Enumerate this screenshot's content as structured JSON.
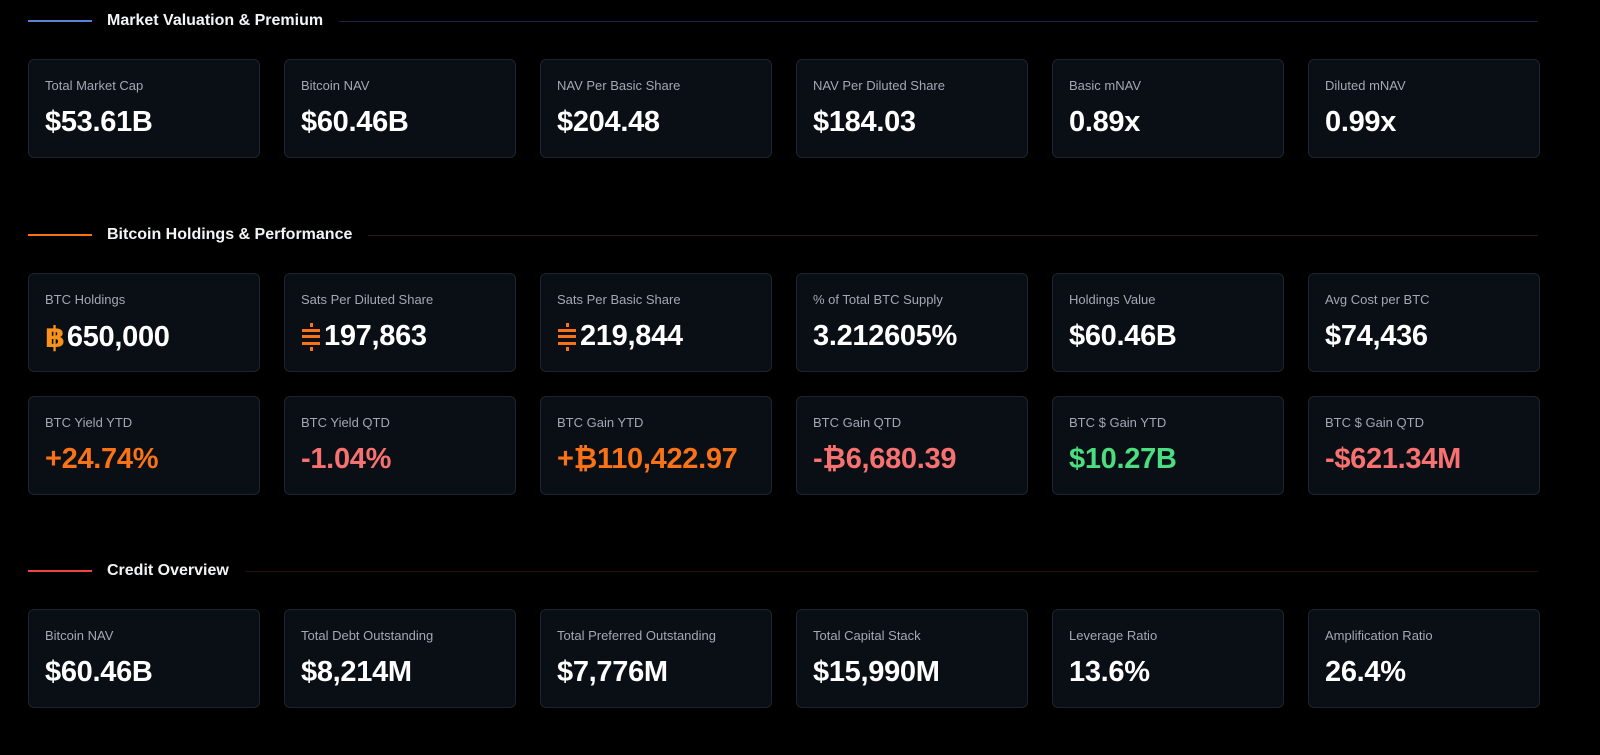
{
  "colors": {
    "accent_blue": "#5b82d9",
    "accent_orange": "#f97316",
    "accent_red": "#ef4444",
    "positive_green": "#4ade80",
    "negative_red": "#f87171",
    "bitcoin_orange": "#f7931a"
  },
  "sections": [
    {
      "title": "Market Valuation & Premium",
      "rows": [
        [
          {
            "label": "Total Market Cap",
            "value": "$53.61B"
          },
          {
            "label": "Bitcoin NAV",
            "value": "$60.46B"
          },
          {
            "label": "NAV Per Basic Share",
            "value": "$204.48"
          },
          {
            "label": "NAV Per Diluted Share",
            "value": "$184.03"
          },
          {
            "label": "Basic mNAV",
            "value": "0.89x"
          },
          {
            "label": "Diluted mNAV",
            "value": "0.99x"
          }
        ]
      ]
    },
    {
      "title": "Bitcoin Holdings & Performance",
      "rows": [
        [
          {
            "label": "BTC Holdings",
            "value": "650,000",
            "icon": "bitcoin-icon"
          },
          {
            "label": "Sats Per Diluted Share",
            "value": "197,863",
            "icon": "sats-icon"
          },
          {
            "label": "Sats Per Basic Share",
            "value": "219,844",
            "icon": "sats-icon"
          },
          {
            "label": "% of Total BTC Supply",
            "value": "3.212605%"
          },
          {
            "label": "Holdings Value",
            "value": "$60.46B"
          },
          {
            "label": "Avg Cost per BTC",
            "value": "$74,436"
          }
        ],
        [
          {
            "label": "BTC Yield YTD",
            "value": "+24.74%",
            "tone": "orange"
          },
          {
            "label": "BTC Yield QTD",
            "value": "-1.04%",
            "tone": "red"
          },
          {
            "label": "BTC Gain YTD",
            "value": "+₿110,422.97",
            "tone": "orange"
          },
          {
            "label": "BTC Gain QTD",
            "value": "-₿6,680.39",
            "tone": "red"
          },
          {
            "label": "BTC $ Gain YTD",
            "value": "$10.27B",
            "tone": "green"
          },
          {
            "label": "BTC $ Gain QTD",
            "value": "-$621.34M",
            "tone": "red"
          }
        ]
      ]
    },
    {
      "title": "Credit Overview",
      "rows": [
        [
          {
            "label": "Bitcoin NAV",
            "value": "$60.46B"
          },
          {
            "label": "Total Debt Outstanding",
            "value": "$8,214M"
          },
          {
            "label": "Total Preferred Outstanding",
            "value": "$7,776M"
          },
          {
            "label": "Total Capital Stack",
            "value": "$15,990M"
          },
          {
            "label": "Leverage Ratio",
            "value": "13.6%"
          },
          {
            "label": "Amplification Ratio",
            "value": "26.4%"
          }
        ]
      ]
    }
  ]
}
